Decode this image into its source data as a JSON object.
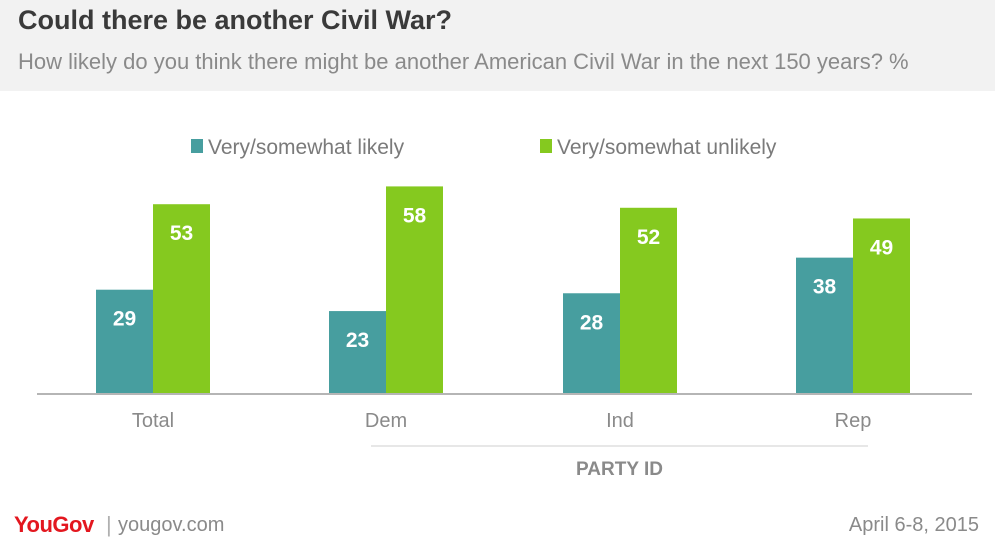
{
  "header": {
    "title": "Could there be another Civil War?",
    "subtitle": "How likely do you think there might be another American Civil War in the next 150 years? %"
  },
  "footer": {
    "brand": "YouGov",
    "url": "yougov.com",
    "date": "April 6-8, 2015"
  },
  "colors": {
    "likely": "#479e9f",
    "unlikely": "#85c91f",
    "header_bg": "#f2f2f2",
    "brand": "#e3171f"
  },
  "chart_data": {
    "type": "bar",
    "categories": [
      "Total",
      "Dem",
      "Ind",
      "Rep"
    ],
    "series": [
      {
        "name": "Very/somewhat likely",
        "values": [
          29,
          23,
          28,
          38
        ]
      },
      {
        "name": "Very/somewhat unlikely",
        "values": [
          53,
          58,
          52,
          49
        ]
      }
    ],
    "group_label": "PARTY ID",
    "group_members": [
      "Dem",
      "Ind",
      "Rep"
    ],
    "ylim": [
      0,
      60
    ],
    "legend": "top",
    "grid": false,
    "data_labels": true
  }
}
